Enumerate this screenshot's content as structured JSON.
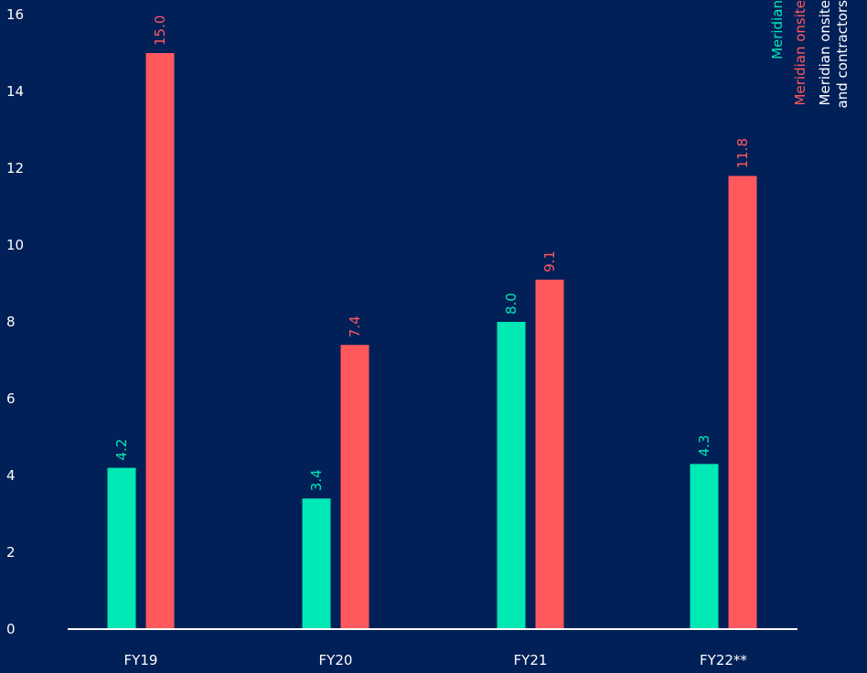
{
  "chart_data": {
    "type": "bar",
    "categories": [
      "FY19",
      "FY20",
      "FY21",
      "FY22**"
    ],
    "ylim": [
      0,
      16
    ],
    "yticks": [
      0,
      2,
      4,
      6,
      8,
      10,
      12,
      14,
      16
    ],
    "grid": false,
    "series": [
      {
        "name": "Meridian",
        "values": [
          4.2,
          3.4,
          8.0,
          4.3
        ],
        "labels": [
          "4.2",
          "3.4",
          "8.0",
          "4.3"
        ],
        "color": "#00E8B4"
      },
      {
        "name": "Meridian onsite",
        "values": [
          15.0,
          7.4,
          9.1,
          11.8
        ],
        "labels": [
          "15.0",
          "7.4",
          "9.1",
          "11.8"
        ],
        "color": "#FF585D"
      }
    ],
    "legend": {
      "placement": "top-right",
      "entries": [
        {
          "lines": [
            "Meridian"
          ],
          "color": "#00E8B4"
        },
        {
          "lines": [
            "Meridian onsite"
          ],
          "color": "#FF585D"
        },
        {
          "lines": [
            "Meridian onsite",
            "and contractors"
          ],
          "color": "#ffffff"
        }
      ]
    }
  },
  "colors": {
    "background": "#002057",
    "axis": "#ffffff",
    "text": "#ffffff"
  }
}
